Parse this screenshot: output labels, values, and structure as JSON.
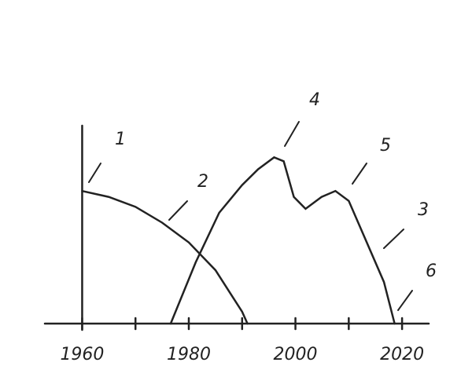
{
  "chart_data": {
    "type": "line",
    "annotations": [
      "1",
      "2",
      "3",
      "4",
      "5",
      "6"
    ],
    "series": [
      {
        "color": "#222222",
        "x": [
          1960,
          1965,
          1970,
          1975,
          1980,
          1985,
          1990,
          1991
        ],
        "values": [
          67,
          64,
          59,
          51,
          41,
          27,
          6,
          0
        ]
      },
      {
        "color": "#222222",
        "x": [
          1976.6,
          1981.3,
          1985.7,
          1990,
          1993,
          1996,
          1997.8,
          1999.7,
          2001.9,
          2004.9,
          2007.5,
          2010,
          2012.9,
          2016.6,
          2018.6
        ],
        "values": [
          0,
          31,
          56,
          70,
          78,
          84,
          82,
          64,
          58,
          64,
          67,
          62,
          44,
          21,
          0
        ]
      }
    ],
    "xlim": [
      1953,
      2025
    ],
    "xticks": [
      1960,
      1980,
      2000,
      2020
    ],
    "xminorticks": [
      1970,
      1990,
      2010
    ],
    "ylim": [
      0,
      100
    ]
  }
}
